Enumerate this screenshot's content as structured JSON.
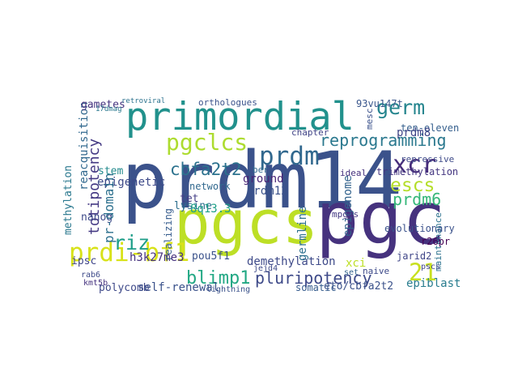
{
  "words": [
    "prdm14",
    "pgc",
    "pgcs",
    "primordial",
    "prdi-bf1",
    "pgclcs",
    "prdm",
    "reprogramming",
    "germ",
    "xcr",
    "escs",
    "prdm6",
    "21",
    "pluripotency",
    "blimp1",
    "riz",
    "totipotency",
    "cbfa2t2",
    "reacquisition",
    "epiblast",
    "somatic",
    "epigenetic",
    "stem",
    "gametes",
    "17dmag",
    "ground",
    "prdm12",
    "demethylation",
    "trimethylation",
    "germline",
    "epigenome",
    "ipsc",
    "nanog",
    "h3k27me3",
    "pou5f1",
    "lysine",
    "self-renewal",
    "polycomb",
    "8q13.3",
    "tet",
    "network",
    "pr-domain",
    "chapter",
    "orthologues",
    "retroviral",
    "93vu147t",
    "mesc",
    "ten-eleven",
    "repressive",
    "jarid2",
    "maintenance",
    "evolutionary",
    "r26pr",
    "pscs",
    "naive",
    "eto/cbfa2t2",
    "xci",
    "mpgcs",
    "lightning",
    "rab6",
    "kmt5b",
    "set",
    "realizing",
    "methylation",
    "ideal",
    "jejd4",
    "prdm8",
    "ber"
  ]
}
